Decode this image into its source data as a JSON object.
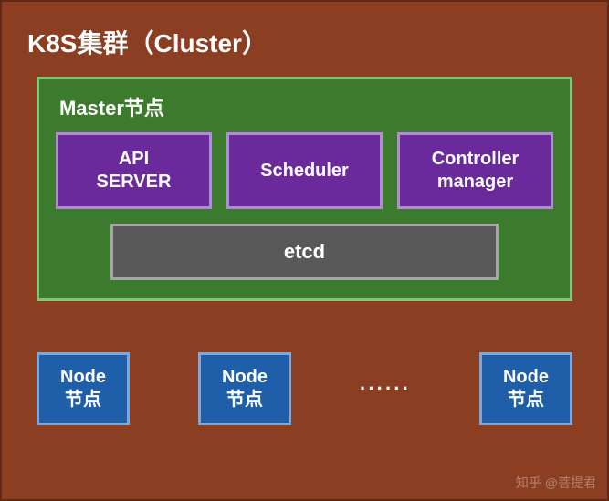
{
  "colors": {
    "cluster_bg": "#8b3e22",
    "cluster_border": "#5e2a16",
    "master_bg": "#3c7a2e",
    "master_border": "#86c47a",
    "component_bg": "#6a2a9c",
    "component_border": "#b38bd6",
    "etcd_bg": "#595959",
    "etcd_border": "#a6a6a6",
    "node_bg": "#1f5ea8",
    "node_border": "#7fa8d9",
    "title_color": "#ffffff"
  },
  "cluster": {
    "title": "K8S集群（Cluster）"
  },
  "master": {
    "title": "Master节点",
    "components": [
      {
        "label": "API\nSERVER"
      },
      {
        "label": "Scheduler"
      },
      {
        "label": "Controller\nmanager"
      }
    ],
    "etcd_label": "etcd"
  },
  "nodes": {
    "label": "Node\n节点",
    "ellipsis": "······",
    "count_shown": 3
  },
  "watermark": "知乎 @菩提君"
}
